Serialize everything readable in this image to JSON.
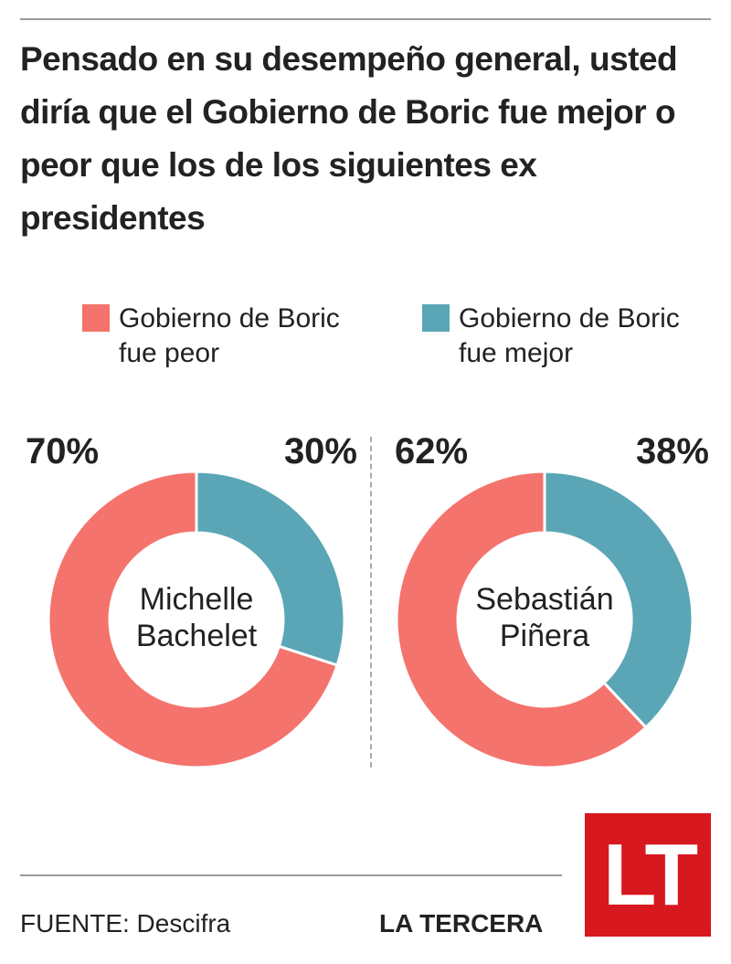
{
  "title": "Pensado en su desempeño general, usted diría que el Gobierno de Boric fue mejor o peor que los de los siguientes ex presidentes",
  "chart_data": [
    {
      "type": "donut",
      "label": "Michelle Bachelet",
      "categories": [
        "Gobierno de Boric fue peor",
        "Gobierno de Boric fue mejor"
      ],
      "values": [
        70,
        30
      ],
      "value_labels": [
        "70%",
        "30%"
      ],
      "colors": [
        "#f4736c",
        "#5ba6b6"
      ]
    },
    {
      "type": "donut",
      "label": "Sebastián Piñera",
      "categories": [
        "Gobierno de Boric fue peor",
        "Gobierno de Boric fue mejor"
      ],
      "values": [
        62,
        38
      ],
      "value_labels": [
        "62%",
        "38%"
      ],
      "colors": [
        "#f4736c",
        "#5ba6b6"
      ]
    }
  ],
  "source": "FUENTE: Descifra",
  "brand": "LA TERCERA",
  "logo": "LT"
}
